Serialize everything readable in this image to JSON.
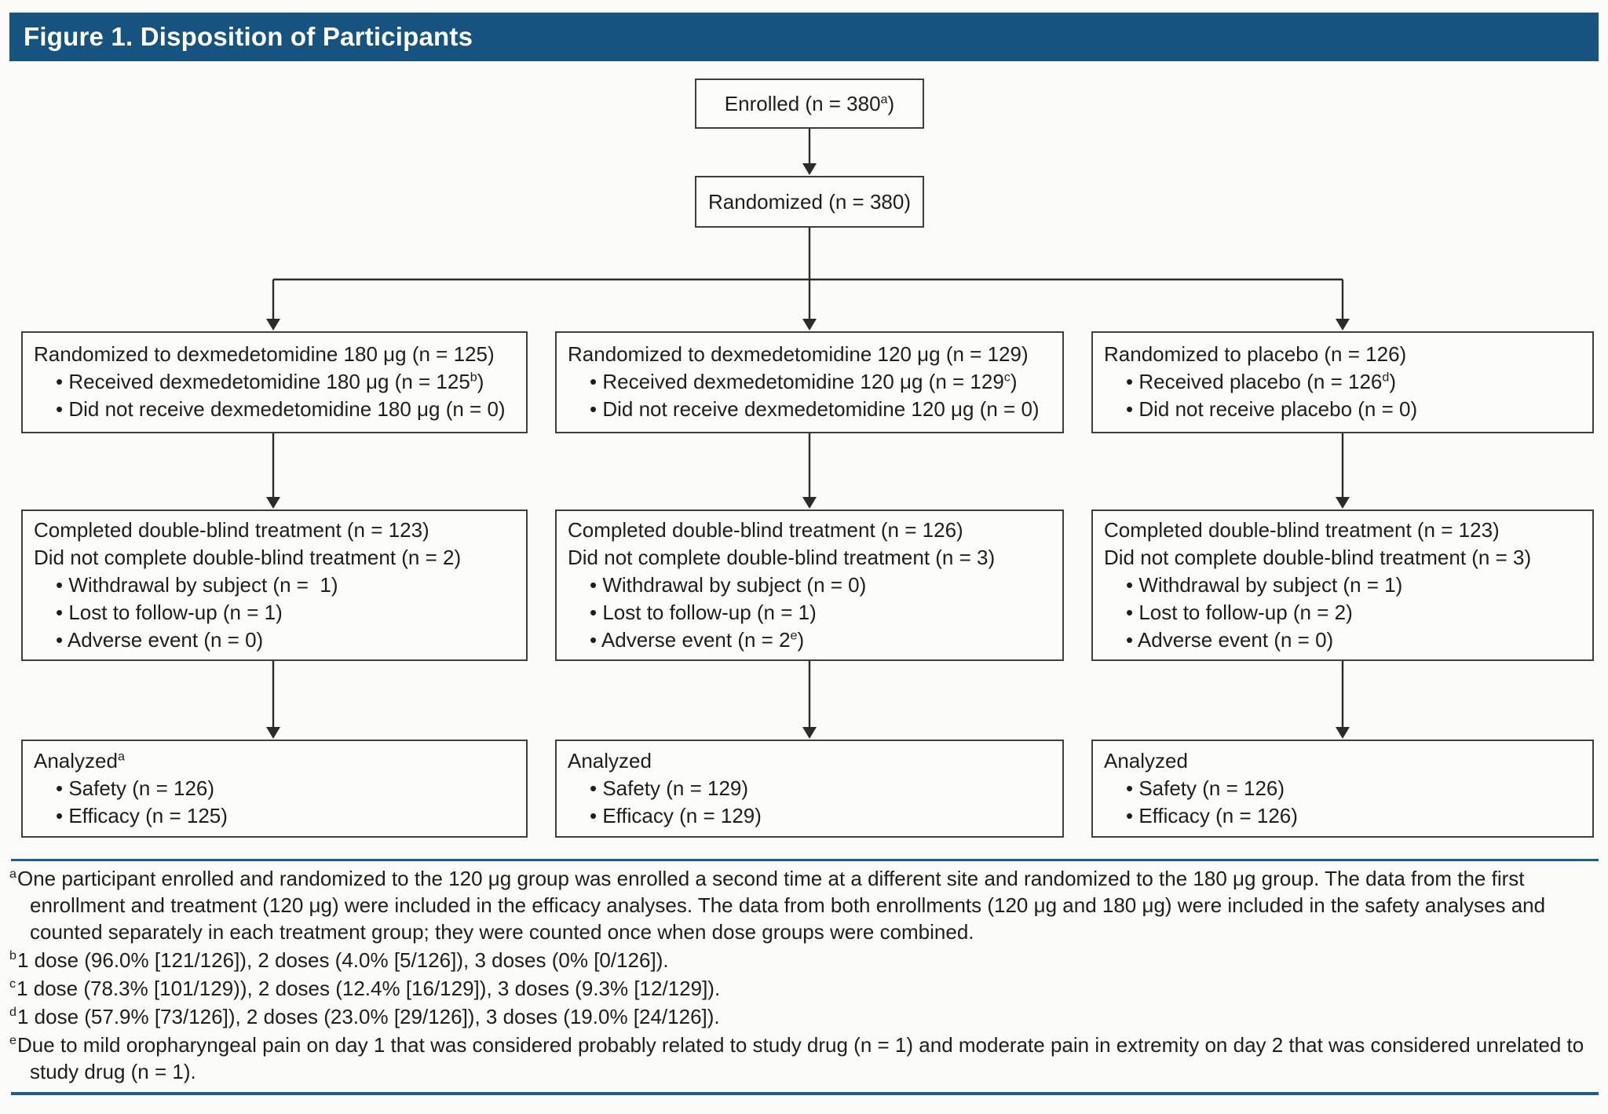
{
  "title": "Figure 1. Disposition of Participants",
  "colors": {
    "header_background": "#16537f",
    "rule_blue": "#1f5c8b",
    "box_border": "#3f3f3f",
    "text": "#1e1e1c",
    "page_background": "#fbfcf9"
  },
  "flow": {
    "enrolled": {
      "lines": [
        {
          "text": "Enrolled (n = 380^a)"
        }
      ]
    },
    "randomized": {
      "lines": [
        {
          "text": "Randomized (n = 380)"
        }
      ]
    },
    "columns": [
      {
        "name": "dexmedetomidine-180",
        "randomization": {
          "lines": [
            {
              "text": "Randomized to dexmedetomidine 180 μg (n = 125)"
            },
            {
              "text": "• Received dexmedetomidine 180 μg (n = 125^b)",
              "bullet": true
            },
            {
              "text": "• Did not receive dexmedetomidine 180 μg (n = 0)",
              "bullet": true
            }
          ]
        },
        "completion": {
          "lines": [
            {
              "text": "Completed double-blind treatment (n = 123)"
            },
            {
              "text": "Did not complete double-blind treatment (n = 2)"
            },
            {
              "text": "• Withdrawal by subject (n =  1)",
              "bullet": true
            },
            {
              "text": "• Lost to follow-up (n = 1)",
              "bullet": true
            },
            {
              "text": "• Adverse event (n = 0)",
              "bullet": true
            }
          ]
        },
        "analyzed": {
          "lines": [
            {
              "text": "Analyzed^a"
            },
            {
              "text": "• Safety (n = 126)",
              "bullet": true
            },
            {
              "text": "• Efficacy (n = 125)",
              "bullet": true
            }
          ]
        }
      },
      {
        "name": "dexmedetomidine-120",
        "randomization": {
          "lines": [
            {
              "text": "Randomized to dexmedetomidine 120 μg (n = 129)"
            },
            {
              "text": "• Received dexmedetomidine 120 μg (n = 129^c)",
              "bullet": true
            },
            {
              "text": "• Did not receive dexmedetomidine 120 μg (n = 0)",
              "bullet": true
            }
          ]
        },
        "completion": {
          "lines": [
            {
              "text": "Completed double-blind treatment (n = 126)"
            },
            {
              "text": "Did not complete double-blind treatment (n = 3)"
            },
            {
              "text": "• Withdrawal by subject (n = 0)",
              "bullet": true
            },
            {
              "text": "• Lost to follow-up (n = 1)",
              "bullet": true
            },
            {
              "text": "• Adverse event (n = 2^e)",
              "bullet": true
            }
          ]
        },
        "analyzed": {
          "lines": [
            {
              "text": "Analyzed"
            },
            {
              "text": "• Safety (n = 129)",
              "bullet": true
            },
            {
              "text": "• Efficacy (n = 129)",
              "bullet": true
            }
          ]
        }
      },
      {
        "name": "placebo",
        "randomization": {
          "lines": [
            {
              "text": "Randomized to placebo (n = 126)"
            },
            {
              "text": "• Received placebo (n = 126^d)",
              "bullet": true
            },
            {
              "text": "• Did not receive placebo (n = 0)",
              "bullet": true
            }
          ]
        },
        "completion": {
          "lines": [
            {
              "text": "Completed double-blind treatment (n = 123)"
            },
            {
              "text": "Did not complete double-blind treatment (n = 3)"
            },
            {
              "text": "• Withdrawal by subject (n = 1)",
              "bullet": true
            },
            {
              "text": "• Lost to follow-up (n = 2)",
              "bullet": true
            },
            {
              "text": "• Adverse event (n = 0)",
              "bullet": true
            }
          ]
        },
        "analyzed": {
          "lines": [
            {
              "text": "Analyzed"
            },
            {
              "text": "• Safety (n = 126)",
              "bullet": true
            },
            {
              "text": "• Efficacy (n = 126)",
              "bullet": true
            }
          ]
        }
      }
    ]
  },
  "footnotes": [
    {
      "marker": "a",
      "text": "One participant enrolled and randomized to the 120 μg group was enrolled a second time at a different site and randomized to the 180 μg group. The data from the first enrollment and treatment (120 μg) were included in the efficacy analyses. The data from both enrollments (120 μg and 180 μg) were included in the safety analyses and counted separately in each treatment group; they were counted once when dose groups were combined."
    },
    {
      "marker": "b",
      "text": "1 dose (96.0% [121/126]), 2 doses (4.0% [5/126]), 3 doses (0% [0/126])."
    },
    {
      "marker": "c",
      "text": "1 dose (78.3% [101/129)), 2 doses (12.4% [16/129]), 3 doses (9.3% [12/129])."
    },
    {
      "marker": "d",
      "text": "1 dose (57.9% [73/126]), 2 doses (23.0% [29/126]), 3 doses (19.0% [24/126])."
    },
    {
      "marker": "e",
      "text": "Due to mild oropharyngeal pain on day 1 that was considered probably related to study drug (n = 1) and moderate pain in extremity on day 2 that was considered unrelated to study drug (n = 1)."
    }
  ]
}
